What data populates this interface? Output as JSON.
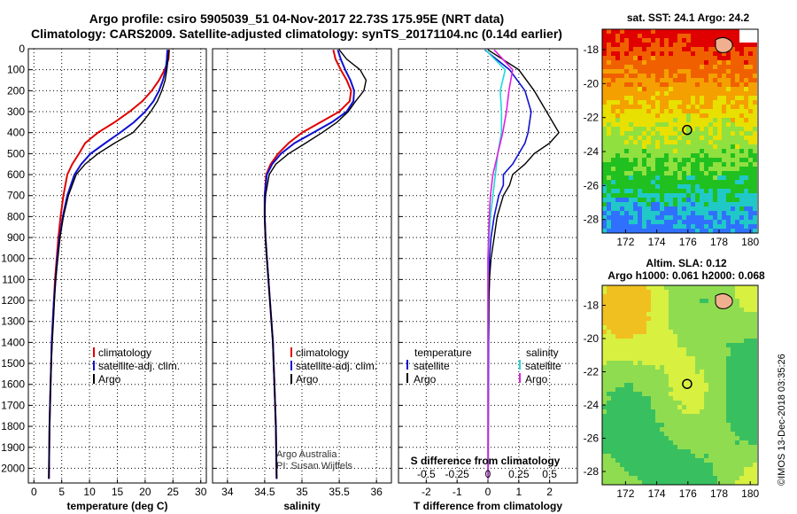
{
  "header": {
    "line1": "Argo profile: csiro 5905039_51 04-Nov-2017 22.73S 175.95E (NRT data)",
    "line2": "Climatology: CARS2009. Satellite-adjusted climatology: synTS_20171104.nc (0.14d earlier)"
  },
  "colors": {
    "climatology": "#e00000",
    "satellite": "#1010d0",
    "argo": "#000000",
    "satellite_salinity": "#20d8d8",
    "argo_salinity_diff": "#e020e0"
  },
  "chart_data": [
    {
      "type": "line",
      "xlabel": "temperature (deg C)",
      "ylabel": "",
      "xlim": [
        -1,
        31
      ],
      "ylim": [
        2070,
        0
      ],
      "xticks": [
        "0",
        "5",
        "10",
        "15",
        "20",
        "25",
        "30"
      ],
      "yticks": [
        "0",
        "100",
        "200",
        "300",
        "400",
        "500",
        "600",
        "700",
        "800",
        "900",
        "1000",
        "1100",
        "1200",
        "1300",
        "1400",
        "1500",
        "1600",
        "1700",
        "1800",
        "1900",
        "2000"
      ],
      "legend": [
        "climatology",
        "satellite-adj. clim.",
        "Argo"
      ],
      "series": [
        {
          "name": "climatology",
          "x": [
            24.3,
            24.2,
            23.5,
            22.5,
            21.2,
            19.5,
            17.2,
            14.5,
            11.5,
            9.2,
            8.1,
            6.9,
            6.0,
            5.3,
            4.8,
            4.4,
            4.1,
            3.8,
            3.6,
            3.4,
            3.2,
            3.1,
            3.0,
            2.9,
            2.8,
            2.7
          ],
          "y": [
            5,
            50,
            100,
            150,
            200,
            250,
            300,
            350,
            400,
            450,
            500,
            550,
            600,
            700,
            800,
            900,
            1000,
            1100,
            1200,
            1300,
            1400,
            1500,
            1600,
            1700,
            1800,
            2050
          ]
        },
        {
          "name": "satellite-adj. clim.",
          "x": [
            24.0,
            23.9,
            23.7,
            23.2,
            22.5,
            21.5,
            20.0,
            18.0,
            15.5,
            12.8,
            10.2,
            8.5,
            7.3,
            6.0,
            5.2,
            4.6,
            4.2,
            3.9,
            3.6,
            3.4,
            3.2,
            3.1,
            3.0,
            2.9,
            2.8,
            2.7
          ],
          "y": [
            5,
            50,
            100,
            150,
            200,
            250,
            300,
            350,
            400,
            450,
            500,
            550,
            600,
            700,
            800,
            900,
            1000,
            1100,
            1200,
            1300,
            1400,
            1500,
            1600,
            1700,
            1800,
            2050
          ]
        },
        {
          "name": "Argo",
          "x": [
            24.3,
            24.1,
            23.9,
            23.6,
            23.0,
            22.2,
            21.0,
            19.5,
            17.8,
            14.5,
            11.5,
            9.2,
            7.6,
            6.2,
            5.3,
            4.7,
            4.3,
            3.9,
            3.7,
            3.5,
            3.3,
            3.1,
            3.0,
            2.9,
            2.8,
            2.7
          ],
          "y": [
            5,
            50,
            100,
            150,
            200,
            250,
            300,
            350,
            400,
            450,
            500,
            550,
            600,
            700,
            800,
            900,
            1000,
            1100,
            1200,
            1300,
            1400,
            1500,
            1600,
            1700,
            1800,
            2050
          ]
        }
      ]
    },
    {
      "type": "line",
      "xlabel": "salinity",
      "ylabel": "",
      "xlim": [
        33.8,
        36.2
      ],
      "ylim": [
        2070,
        0
      ],
      "xticks": [
        "34",
        "34.5",
        "35",
        "35.5",
        "36"
      ],
      "legend": [
        "climatology",
        "satellite-adj. clim.",
        "Argo"
      ],
      "annotations": [
        "Argo Australia",
        "PI: Susan Wijffels"
      ],
      "series": [
        {
          "name": "climatology",
          "x": [
            35.42,
            35.45,
            35.52,
            35.6,
            35.66,
            35.64,
            35.5,
            35.25,
            35.0,
            34.82,
            34.68,
            34.58,
            34.52,
            34.5,
            34.5,
            34.51,
            34.53,
            34.55,
            34.57,
            34.59,
            34.61,
            34.62,
            34.63,
            34.64,
            34.65,
            34.66
          ],
          "y": [
            5,
            50,
            100,
            150,
            200,
            250,
            300,
            350,
            400,
            450,
            500,
            550,
            600,
            700,
            800,
            900,
            1000,
            1100,
            1200,
            1300,
            1400,
            1500,
            1600,
            1700,
            1800,
            2050
          ]
        },
        {
          "name": "satellite-adj. clim.",
          "x": [
            35.48,
            35.52,
            35.58,
            35.65,
            35.7,
            35.69,
            35.6,
            35.4,
            35.15,
            34.9,
            34.72,
            34.6,
            34.53,
            34.5,
            34.5,
            34.51,
            34.53,
            34.55,
            34.57,
            34.59,
            34.61,
            34.62,
            34.63,
            34.64,
            34.65,
            34.66
          ],
          "y": [
            5,
            50,
            100,
            150,
            200,
            250,
            300,
            350,
            400,
            450,
            500,
            550,
            600,
            700,
            800,
            900,
            1000,
            1100,
            1200,
            1300,
            1400,
            1500,
            1600,
            1700,
            1800,
            2050
          ]
        },
        {
          "name": "Argo",
          "x": [
            35.5,
            35.6,
            35.78,
            35.86,
            35.83,
            35.72,
            35.62,
            35.47,
            35.27,
            35.05,
            34.82,
            34.65,
            34.56,
            34.51,
            34.5,
            34.51,
            34.53,
            34.55,
            34.57,
            34.59,
            34.61,
            34.62,
            34.63,
            34.64,
            34.65,
            34.66
          ],
          "y": [
            5,
            50,
            100,
            150,
            200,
            250,
            300,
            350,
            400,
            450,
            500,
            550,
            600,
            700,
            800,
            900,
            1000,
            1100,
            1200,
            1300,
            1400,
            1500,
            1600,
            1700,
            1800,
            2050
          ]
        }
      ]
    },
    {
      "type": "line",
      "xlabel": "T difference from climatology",
      "ylabel": "",
      "xlim": [
        -2.9,
        2.9
      ],
      "ylim": [
        2070,
        0
      ],
      "xticks": [
        "-2",
        "-1",
        "0",
        "1",
        "2"
      ],
      "secondary_axis": {
        "label": "S difference from climatology",
        "ticks": [
          "-0.5",
          "-0.25",
          "0",
          "0.25",
          "0.5"
        ]
      },
      "legend": [
        "temperature",
        "satellite",
        "Argo",
        "salinity",
        "satellite",
        "Argo"
      ],
      "series": [
        {
          "name": "T satellite",
          "x": [
            -0.1,
            0.7,
            1.2,
            1.4,
            1.3,
            1.2,
            1.0,
            0.8,
            0.5,
            0.5,
            0.35,
            0.2,
            0.1,
            0.05,
            0.05,
            0.03,
            0.03,
            0.02,
            0.01
          ],
          "y": [
            5,
            100,
            200,
            300,
            400,
            450,
            500,
            550,
            600,
            650,
            700,
            800,
            900,
            1000,
            1100,
            1200,
            1300,
            1400,
            2050
          ]
        },
        {
          "name": "T Argo",
          "x": [
            0.0,
            1.0,
            1.5,
            1.9,
            2.3,
            2.0,
            1.5,
            1.2,
            0.8,
            0.7,
            0.5,
            0.3,
            0.2,
            0.1,
            0.05,
            0.03,
            0.02,
            0.01,
            0.01
          ],
          "y": [
            5,
            100,
            200,
            300,
            400,
            450,
            500,
            550,
            600,
            650,
            700,
            800,
            900,
            1000,
            1100,
            1200,
            1300,
            1400,
            2050
          ]
        },
        {
          "name": "S satellite",
          "x": [
            -0.02,
            0.14,
            0.1,
            0.11,
            0.11,
            0.08,
            0.06,
            0.04,
            0.02,
            0.0,
            0.0,
            0.0,
            0.0
          ],
          "y": [
            5,
            100,
            200,
            300,
            400,
            500,
            600,
            700,
            800,
            1000,
            1200,
            1400,
            2050
          ]
        },
        {
          "name": "S Argo",
          "x": [
            0.05,
            0.2,
            0.17,
            0.15,
            0.12,
            0.08,
            0.04,
            0.02,
            0.01,
            0.0,
            0.0,
            0.0,
            0.0
          ],
          "y": [
            5,
            100,
            200,
            300,
            400,
            500,
            600,
            700,
            800,
            1000,
            1200,
            1400,
            2050
          ]
        }
      ]
    },
    {
      "type": "heatmap",
      "title": "sat. SST: 24.1 Argo: 24.2",
      "xticks": [
        "172",
        "174",
        "176",
        "178",
        "180"
      ],
      "yticks": [
        "-18",
        "-20",
        "-22",
        "-24",
        "-26",
        "-28"
      ],
      "xlim": [
        170.5,
        180.5
      ],
      "ylim": [
        -28.8,
        -16.8
      ],
      "marker": {
        "lon": 175.95,
        "lat": -22.73
      },
      "gradient": [
        "#e00000",
        "#f06000",
        "#f4a000",
        "#e8e000",
        "#90e040",
        "#20c020",
        "#20c8c8",
        "#3070ff"
      ]
    },
    {
      "type": "heatmap",
      "title": "Altim. SLA: 0.12",
      "subtitle": "Argo h1000: 0.061 h2000: 0.068",
      "xticks": [
        "172",
        "174",
        "176",
        "178",
        "180"
      ],
      "yticks": [
        "-18",
        "-20",
        "-22",
        "-24",
        "-26",
        "-28"
      ],
      "xlim": [
        170.5,
        180.5
      ],
      "ylim": [
        -28.8,
        -16.8
      ],
      "marker": {
        "lon": 175.95,
        "lat": -22.73
      }
    }
  ],
  "footer": {
    "stamp": "©IMOS 13-Dec-2018 03:35:26"
  }
}
